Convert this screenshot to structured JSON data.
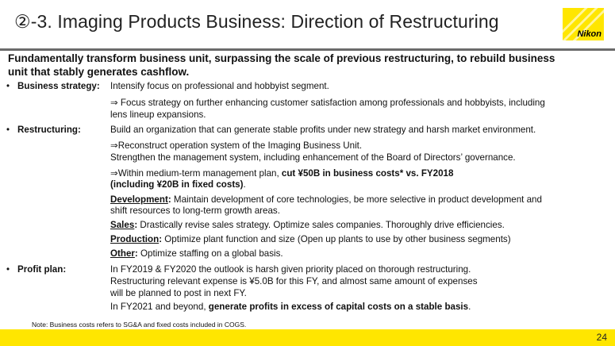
{
  "title": "②-3. Imaging Products Business: Direction of Restructuring",
  "logo_text": "Nikon",
  "brand_color": "#ffe600",
  "headline": [
    "Fundamentally transform business unit, surpassing the scale of previous restructuring, to rebuild business",
    "unit that stably generates cashflow."
  ],
  "business_strategy": {
    "label": "Business strategy:",
    "l1": "Intensify focus on professional and hobbyist segment.",
    "l2": "⇒ Focus strategy on further enhancing customer satisfaction among professionals and hobbyists, including",
    "l3": "lens lineup expansions."
  },
  "restructuring": {
    "label": "Restructuring:",
    "l1": "Build an organization that can generate stable profits under new strategy and harsh market environment.",
    "l2": "⇒Reconstruct operation system of the Imaging Business Unit.",
    "l3": "Strengthen the management system, including enhancement of the Board of Directors’ governance.",
    "l4a": "⇒Within medium-term management plan, ",
    "l4b": "cut ¥50B in business costs* vs. FY2018",
    "l5a": " (including ¥20B in fixed costs)",
    "l5b": ".",
    "dev_label": "Development",
    "dev_text": " Maintain development of core technologies, be more selective in product development and",
    "dev_text2": "shift resources to long-term growth areas.",
    "sales_label": "Sales",
    "sales_text": " Drastically revise sales strategy. Optimize sales companies. Thoroughly drive efficiencies.",
    "prod_label": "Production",
    "prod_text": " Optimize plant function and size (Open up plants to use by other business segments)",
    "other_label": "Other",
    "other_text": " Optimize staffing on a global basis.",
    "colon": ":"
  },
  "profit_plan": {
    "label": "Profit plan:",
    "l1": "In FY2019 & FY2020 the outlook is harsh given priority placed on thorough restructuring.",
    "l2": "Restructuring relevant expense is ¥5.0B for this FY, and almost same amount of expenses",
    "l3": "will be planned to post in next FY.",
    "l4a": "In FY2021 and beyond, ",
    "l4b": "generate profits in excess of capital costs on a stable basis",
    "l4c": "."
  },
  "note": "Note: Business costs refers to SG&A and fixed costs included in COGS.",
  "page_number": "24"
}
